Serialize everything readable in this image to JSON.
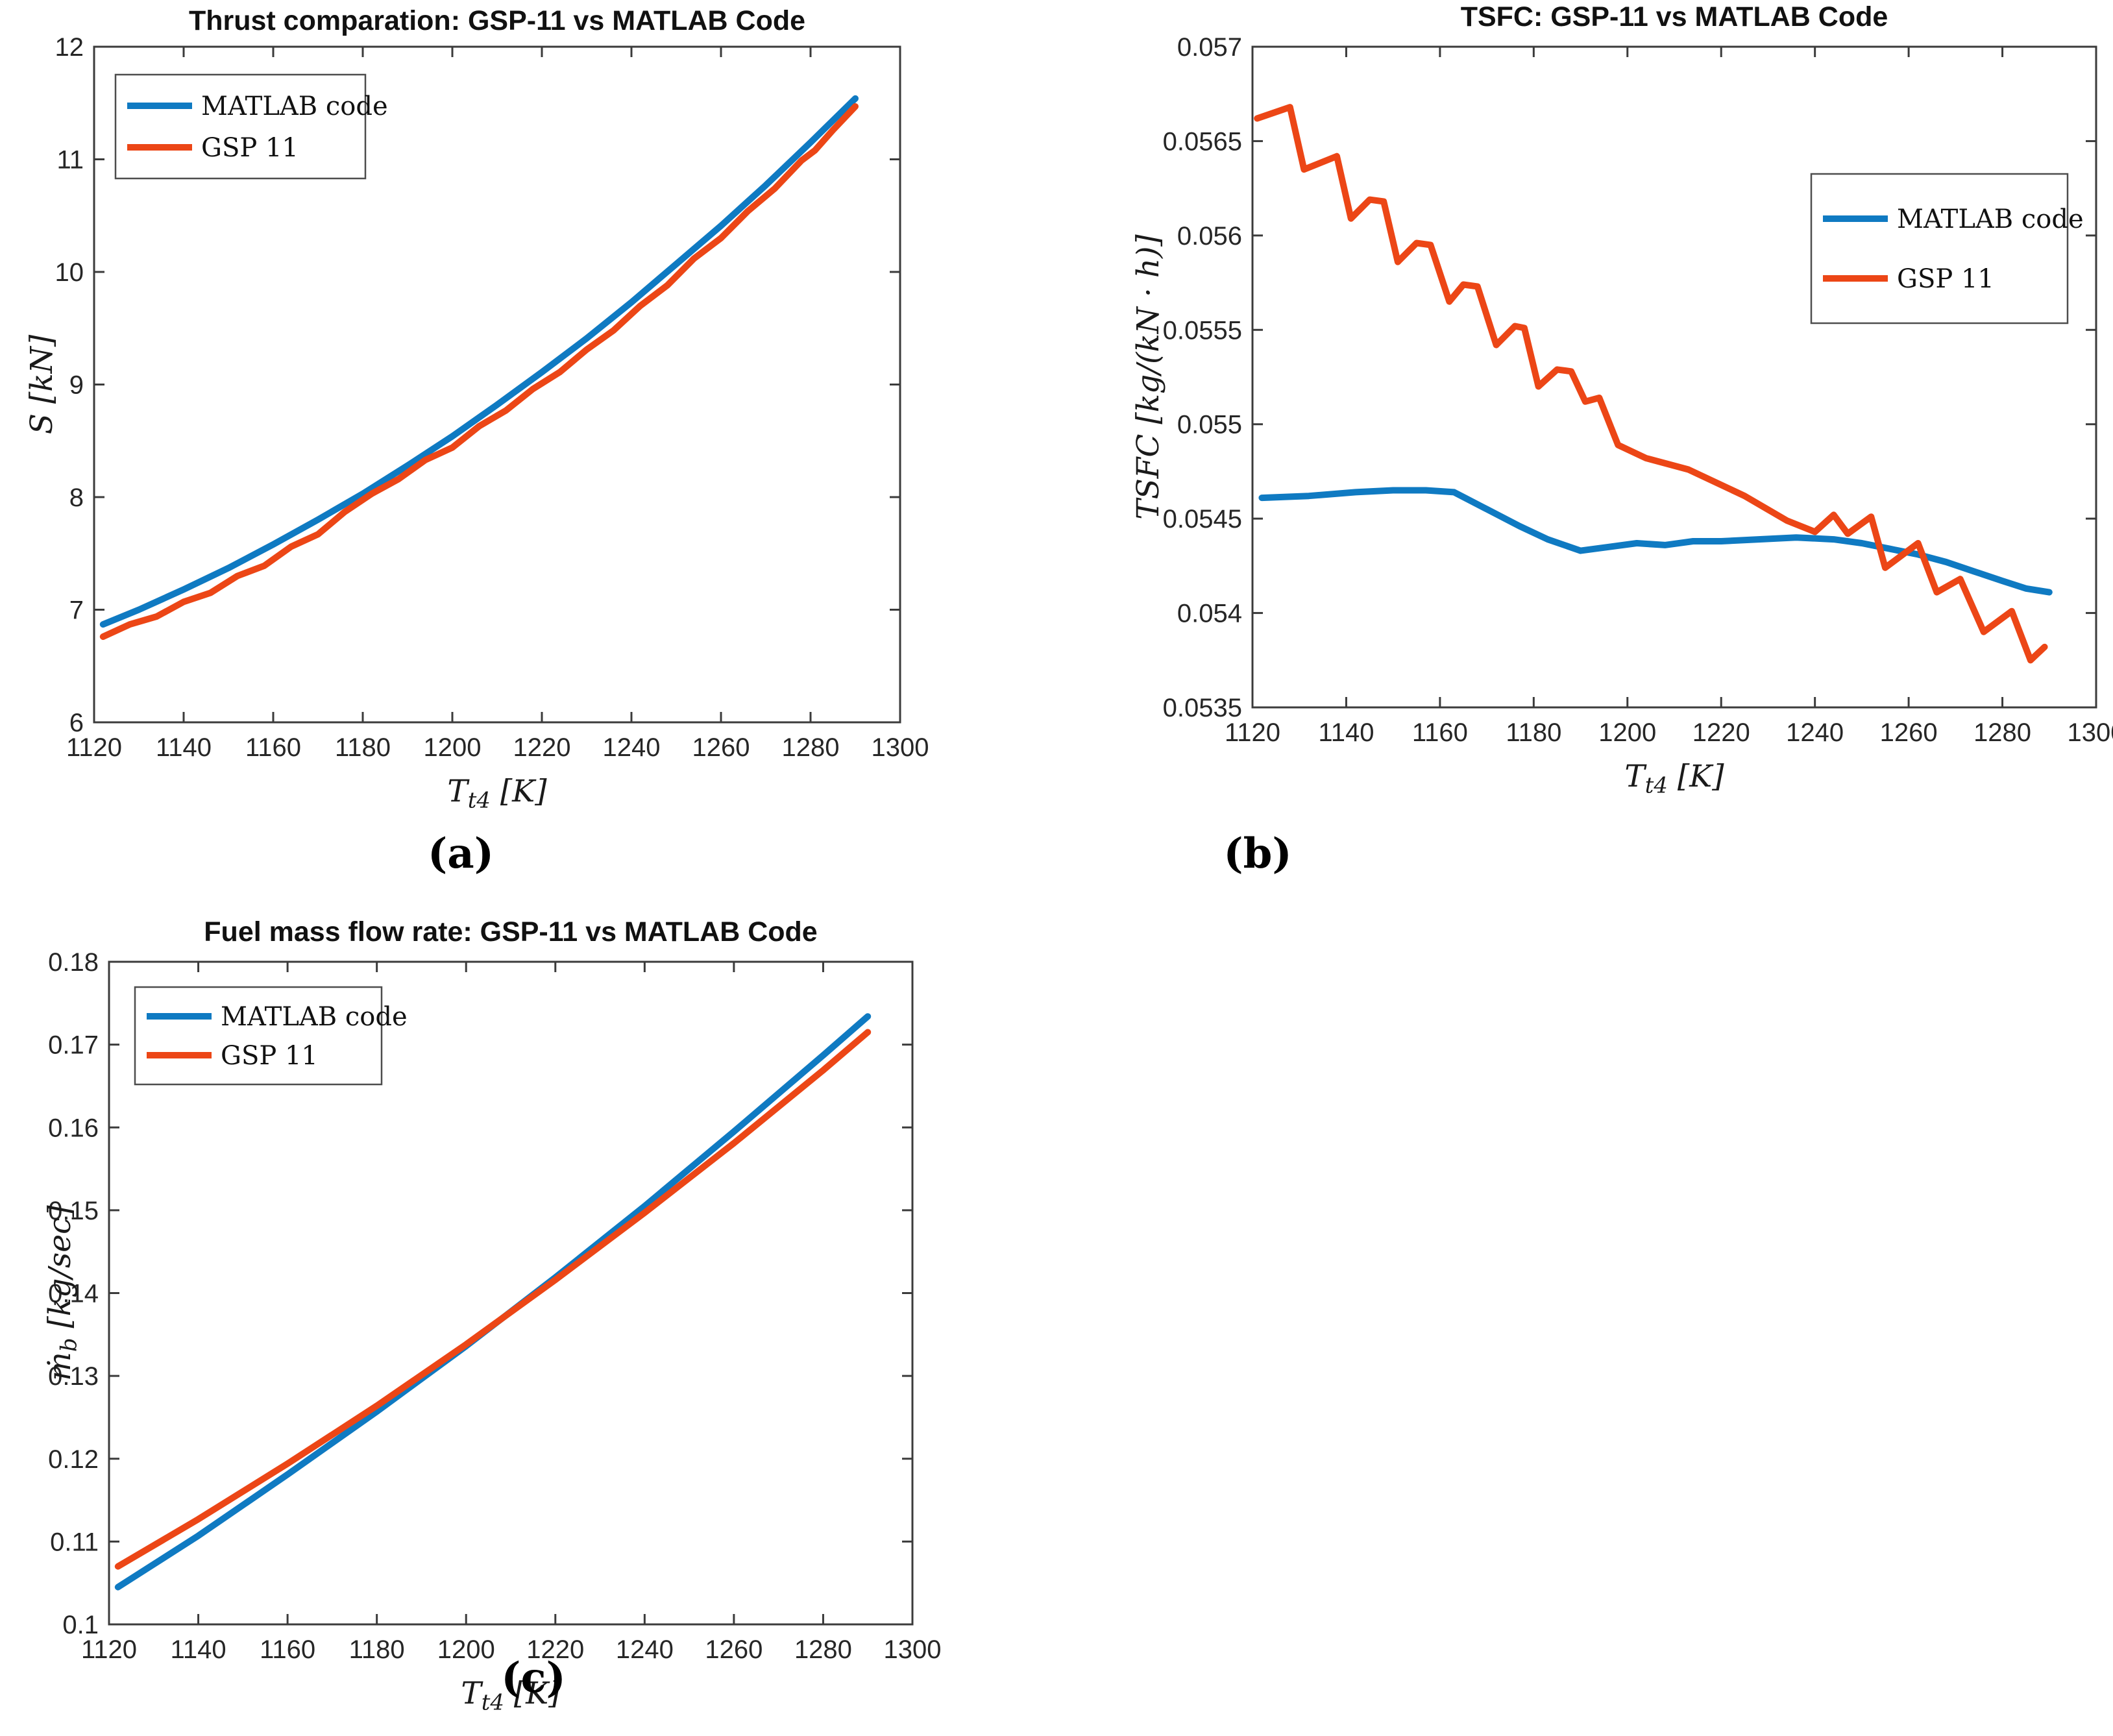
{
  "colors": {
    "blue": "#0F7AC2",
    "orange": "#EC4616",
    "axis": "#3b3b3b",
    "tick_text": "#262626"
  },
  "captions": {
    "a": "(a)",
    "b": "(b)",
    "c": "(c)"
  },
  "chart_data": [
    {
      "id": "thrust",
      "type": "line",
      "title": "Thrust comparation: GSP-11 vs MATLAB Code",
      "xlabel": "T_{t4} [K]",
      "ylabel": "S [kN]",
      "xlim": [
        1120,
        1300
      ],
      "ylim": [
        6,
        12
      ],
      "xticks": {
        "values": [
          1120,
          1140,
          1160,
          1180,
          1200,
          1220,
          1240,
          1260,
          1280,
          1300
        ],
        "labels": [
          "1120",
          "1140",
          "1160",
          "1180",
          "1200",
          "1220",
          "1240",
          "1260",
          "1280",
          "1300"
        ]
      },
      "yticks": {
        "values": [
          6,
          7,
          8,
          9,
          10,
          11,
          12
        ],
        "labels": [
          "6",
          "7",
          "8",
          "9",
          "10",
          "11",
          "12"
        ]
      },
      "legend_position": "northwest",
      "grid": false,
      "series": [
        {
          "name": "MATLAB code",
          "color_key": "blue",
          "x": [
            1122,
            1130,
            1140,
            1150,
            1160,
            1170,
            1180,
            1190,
            1200,
            1210,
            1220,
            1230,
            1240,
            1250,
            1260,
            1270,
            1280,
            1290
          ],
          "y": [
            6.87,
            7.0,
            7.18,
            7.37,
            7.58,
            7.8,
            8.03,
            8.28,
            8.54,
            8.82,
            9.11,
            9.41,
            9.73,
            10.07,
            10.41,
            10.77,
            11.15,
            11.54
          ]
        },
        {
          "name": "GSP 11",
          "color_key": "orange",
          "x": [
            1122,
            1128,
            1134,
            1140,
            1146,
            1152,
            1158,
            1164,
            1170,
            1176,
            1182,
            1188,
            1194,
            1200,
            1206,
            1212,
            1218,
            1224,
            1230,
            1236,
            1242,
            1248,
            1254,
            1260,
            1266,
            1272,
            1278,
            1281,
            1285,
            1290
          ],
          "y": [
            6.76,
            6.87,
            6.94,
            7.07,
            7.15,
            7.3,
            7.39,
            7.56,
            7.67,
            7.87,
            8.03,
            8.16,
            8.33,
            8.44,
            8.63,
            8.77,
            8.96,
            9.11,
            9.31,
            9.48,
            9.7,
            9.88,
            10.12,
            10.3,
            10.54,
            10.74,
            10.99,
            11.08,
            11.26,
            11.47
          ]
        }
      ]
    },
    {
      "id": "tsfc",
      "type": "line",
      "title": "TSFC: GSP-11 vs MATLAB Code",
      "xlabel": "T_{t4} [K]",
      "ylabel": "TSFC [kg/(kN · h)]",
      "xlim": [
        1120,
        1300
      ],
      "ylim": [
        0.0535,
        0.057
      ],
      "xticks": {
        "values": [
          1120,
          1140,
          1160,
          1180,
          1200,
          1220,
          1240,
          1260,
          1280,
          1300
        ],
        "labels": [
          "1120",
          "1140",
          "1160",
          "1180",
          "1200",
          "1220",
          "1240",
          "1260",
          "1280",
          "1300"
        ]
      },
      "yticks": {
        "values": [
          0.0535,
          0.054,
          0.0545,
          0.055,
          0.0555,
          0.056,
          0.0565,
          0.057
        ],
        "labels": [
          "0.0535",
          "0.054",
          "0.0545",
          "0.055",
          "0.0555",
          "0.056",
          "0.0565",
          "0.057"
        ]
      },
      "legend_position": "northeast",
      "grid": false,
      "series": [
        {
          "name": "MATLAB code",
          "color_key": "blue",
          "x": [
            1122,
            1132,
            1142,
            1150,
            1157,
            1163,
            1170,
            1177,
            1183,
            1190,
            1196,
            1202,
            1208,
            1214,
            1220,
            1228,
            1236,
            1244,
            1250,
            1256,
            1262,
            1268,
            1274,
            1280,
            1285,
            1290
          ],
          "y": [
            0.05461,
            0.05462,
            0.05464,
            0.05465,
            0.05465,
            0.05464,
            0.05455,
            0.05446,
            0.05439,
            0.05433,
            0.05435,
            0.05437,
            0.05436,
            0.05438,
            0.05438,
            0.05439,
            0.0544,
            0.05439,
            0.05437,
            0.05434,
            0.05431,
            0.05427,
            0.05422,
            0.05417,
            0.05413,
            0.05411
          ]
        },
        {
          "name": "GSP 11",
          "color_key": "orange",
          "x": [
            1121,
            1128,
            1131,
            1138,
            1141,
            1145,
            1148,
            1151,
            1155,
            1158,
            1162,
            1165,
            1168,
            1172,
            1176,
            1178,
            1181,
            1185,
            1188,
            1191,
            1194,
            1198,
            1204,
            1213,
            1225,
            1234,
            1240,
            1244,
            1247,
            1252,
            1255,
            1262,
            1266,
            1271,
            1276,
            1282,
            1286,
            1289
          ],
          "y": [
            0.05662,
            0.05668,
            0.05635,
            0.05642,
            0.05609,
            0.05619,
            0.05618,
            0.05586,
            0.05596,
            0.05595,
            0.05565,
            0.05574,
            0.05573,
            0.05542,
            0.05552,
            0.05551,
            0.0552,
            0.05529,
            0.05528,
            0.05512,
            0.05514,
            0.05489,
            0.05482,
            0.05476,
            0.05462,
            0.05449,
            0.05443,
            0.05452,
            0.05442,
            0.05451,
            0.05424,
            0.05437,
            0.05411,
            0.05418,
            0.0539,
            0.05401,
            0.05375,
            0.05382
          ]
        }
      ]
    },
    {
      "id": "fuel-flow",
      "type": "line",
      "title": "Fuel mass flow rate: GSP-11 vs MATLAB Code",
      "xlabel": "T_{t4} [K]",
      "ylabel": "ṁ_{b} [kg/sec]",
      "xlim": [
        1120,
        1300
      ],
      "ylim": [
        0.1,
        0.18
      ],
      "xticks": {
        "values": [
          1120,
          1140,
          1160,
          1180,
          1200,
          1220,
          1240,
          1260,
          1280,
          1300
        ],
        "labels": [
          "1120",
          "1140",
          "1160",
          "1180",
          "1200",
          "1220",
          "1240",
          "1260",
          "1280",
          "1300"
        ]
      },
      "yticks": {
        "values": [
          0.1,
          0.11,
          0.12,
          0.13,
          0.14,
          0.15,
          0.16,
          0.17,
          0.18
        ],
        "labels": [
          "0.1",
          "0.11",
          "0.12",
          "0.13",
          "0.14",
          "0.15",
          "0.16",
          "0.17",
          "0.18"
        ]
      },
      "legend_position": "northwest",
      "grid": false,
      "series": [
        {
          "name": "MATLAB code",
          "color_key": "blue",
          "x": [
            1122,
            1140,
            1160,
            1180,
            1200,
            1220,
            1240,
            1260,
            1280,
            1290
          ],
          "y": [
            0.1045,
            0.1107,
            0.1181,
            0.1257,
            0.1336,
            0.1419,
            0.1505,
            0.1595,
            0.1687,
            0.1734
          ]
        },
        {
          "name": "GSP 11",
          "color_key": "orange",
          "x": [
            1122,
            1140,
            1160,
            1180,
            1200,
            1220,
            1240,
            1260,
            1280,
            1290
          ],
          "y": [
            0.107,
            0.1127,
            0.1194,
            0.1264,
            0.1338,
            0.1416,
            0.1497,
            0.1581,
            0.1669,
            0.1715
          ]
        }
      ]
    }
  ]
}
